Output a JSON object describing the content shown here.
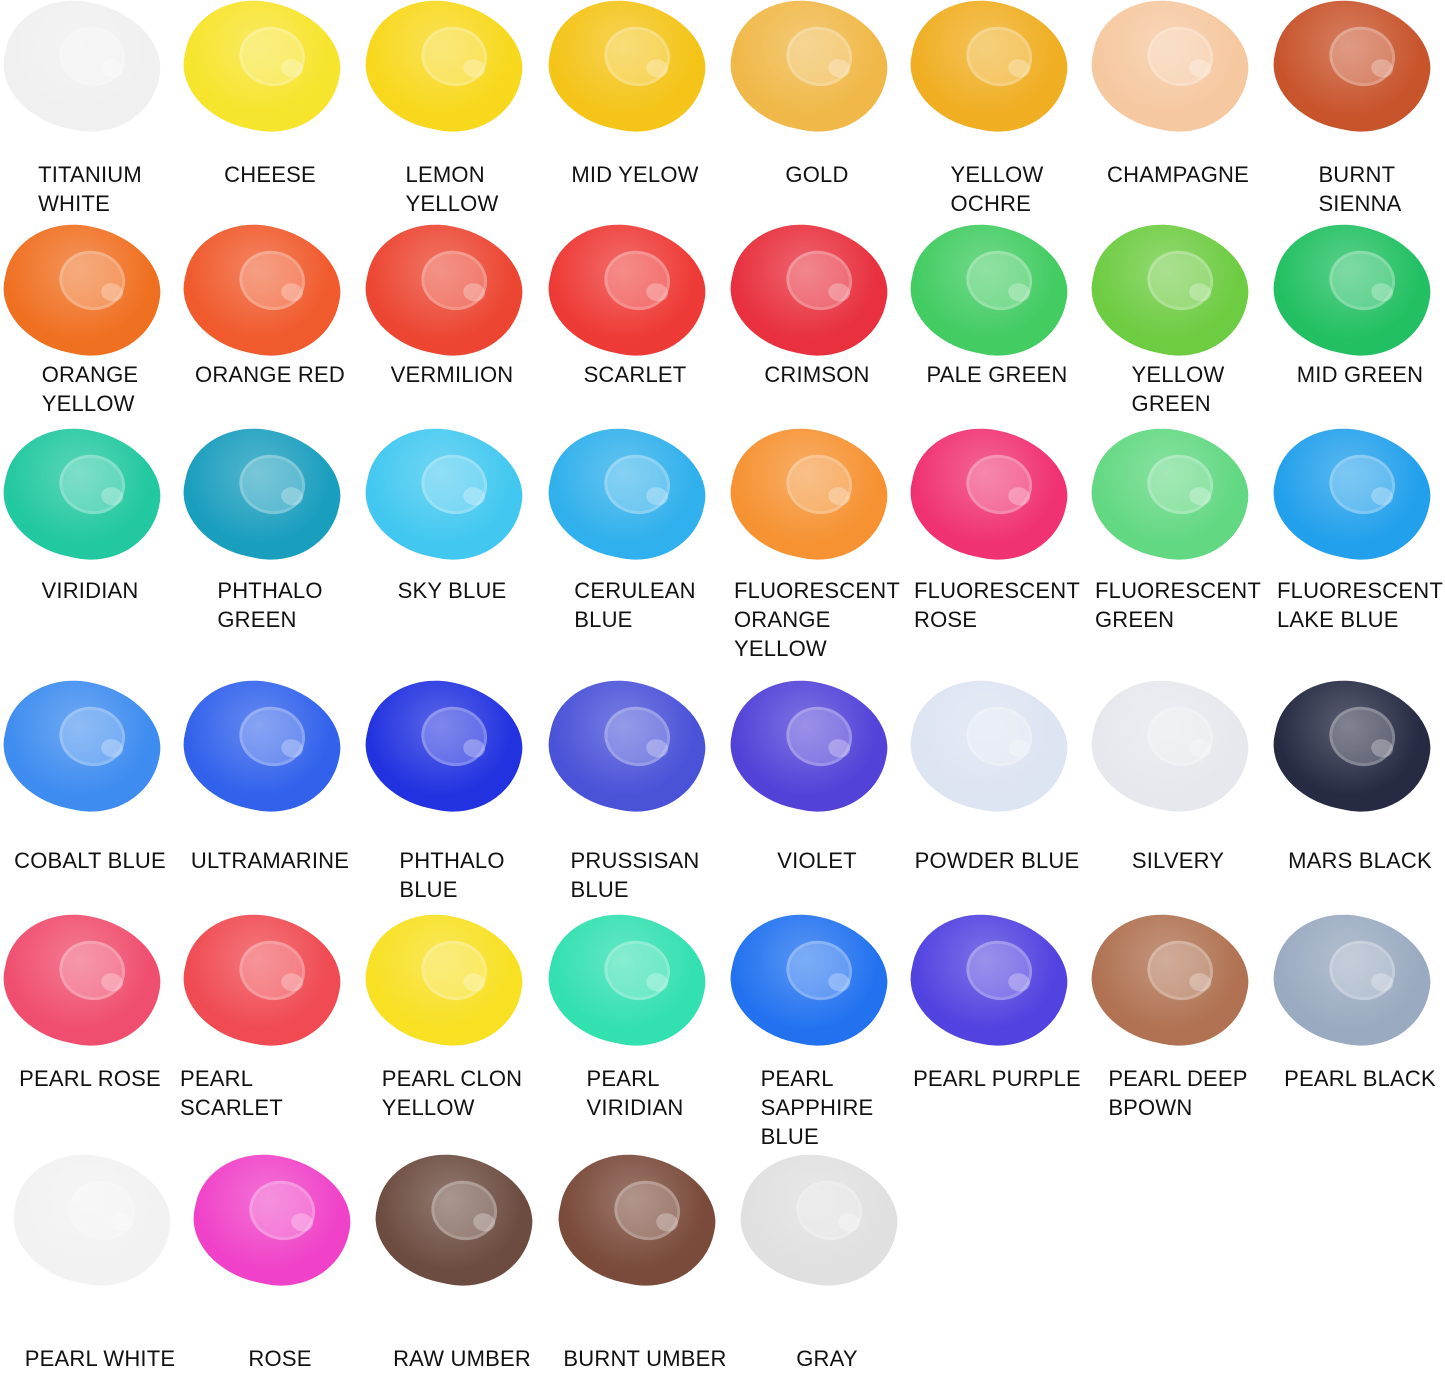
{
  "swatches": [
    {
      "label": "TITANIUM\nWHITE",
      "color": "#f0f0f0"
    },
    {
      "label": "CHEESE",
      "color": "#f7e42c"
    },
    {
      "label": "LEMON\nYELLOW",
      "color": "#f8d81c"
    },
    {
      "label": "MID YELOW",
      "color": "#f4c418"
    },
    {
      "label": "GOLD",
      "color": "#f0b848"
    },
    {
      "label": "YELLOW\nOCHRE",
      "color": "#f0ae22"
    },
    {
      "label": "CHAMPAGNE",
      "color": "#f6c8a0"
    },
    {
      "label": "BURNT\nSIENNA",
      "color": "#c8542c"
    },
    {
      "label": "ORANGE\nYELLOW",
      "color": "#f07022"
    },
    {
      "label": "ORANGE RED",
      "color": "#f05a2c"
    },
    {
      "label": "VERMILION",
      "color": "#ec4632"
    },
    {
      "label": "SCARLET",
      "color": "#ee3a36"
    },
    {
      "label": "CRIMSON",
      "color": "#e8303e"
    },
    {
      "label": "PALE GREEN",
      "color": "#42cc62"
    },
    {
      "label": "YELLOW\nGREEN",
      "color": "#6ecc42"
    },
    {
      "label": "MID GREEN",
      "color": "#22c062"
    },
    {
      "label": "VIRIDIAN",
      "color": "#22c8a0"
    },
    {
      "label": "PHTHALO\nGREEN",
      "color": "#1a9ebe"
    },
    {
      "label": "SKY BLUE",
      "color": "#42c8f0"
    },
    {
      "label": "CERULEAN\nBLUE",
      "color": "#30b0ec"
    },
    {
      "label": "FLUORESCENT\nORANGE\nYELLOW",
      "color": "#f69232"
    },
    {
      "label": "FLUORESCENT\nROSE",
      "color": "#f03272"
    },
    {
      "label": "FLUORESCENT\nGREEN",
      "color": "#62d882"
    },
    {
      "label": "FLUORESCENT\nLAKE BLUE",
      "color": "#22a0ec"
    },
    {
      "label": "COBALT BLUE",
      "color": "#3e8cf0"
    },
    {
      "label": "ULTRAMARINE",
      "color": "#3262ec"
    },
    {
      "label": "PHTHALO\nBLUE",
      "color": "#2232e0"
    },
    {
      "label": "PRUSSISAN\nBLUE",
      "color": "#4a52d8"
    },
    {
      "label": "VIOLET",
      "color": "#5242d8"
    },
    {
      "label": "POWDER BLUE",
      "color": "#dde4f2"
    },
    {
      "label": "SILVERY",
      "color": "#e6e8ee"
    },
    {
      "label": "MARS BLACK",
      "color": "#262a42"
    },
    {
      "label": "PEARL ROSE",
      "color": "#f04e6e"
    },
    {
      "label": "PEARL SCARLET",
      "color": "#f04a52"
    },
    {
      "label": "PEARL CLON\nYELLOW",
      "color": "#f8e022"
    },
    {
      "label": "PEARL\nVIRIDIAN",
      "color": "#32e0b0"
    },
    {
      "label": "PEARL\nSAPPHIRE\nBLUE",
      "color": "#2272f0"
    },
    {
      "label": "PEARL PURPLE",
      "color": "#5242e0"
    },
    {
      "label": "PEARL DEEP\nBPOWN",
      "color": "#b07252"
    },
    {
      "label": "PEARL BLACK",
      "color": "#9aaac0"
    },
    {
      "label": "PEARL WHITE",
      "color": "#f2f2f2"
    },
    {
      "label": "ROSE",
      "color": "#f042c8"
    },
    {
      "label": "RAW UMBER",
      "color": "#6c4c40"
    },
    {
      "label": "BURNT UMBER",
      "color": "#7a4a3a"
    },
    {
      "label": "GRAY",
      "color": "#e0e0e0"
    }
  ]
}
